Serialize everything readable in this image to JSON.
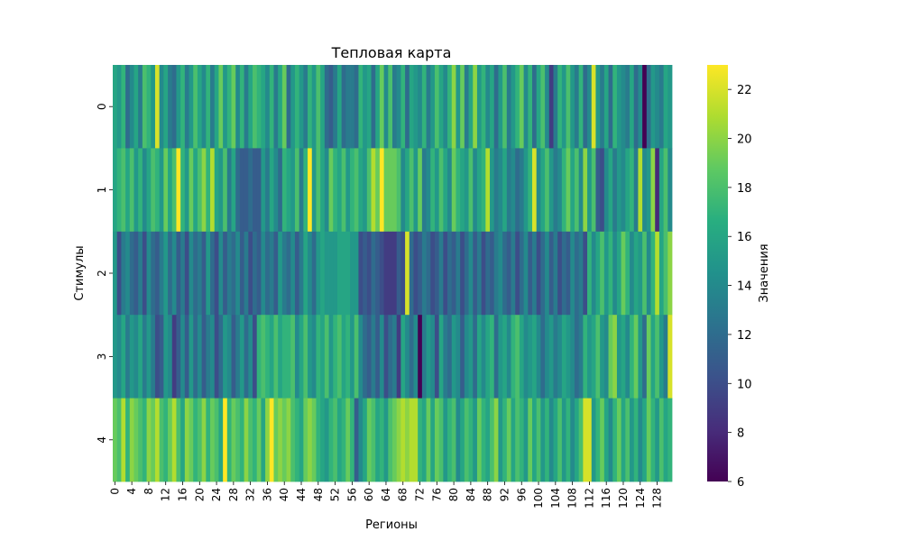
{
  "chart_data": {
    "type": "heatmap",
    "title": "Тепловая карта",
    "xlabel": "Регионы",
    "ylabel": "Стимулы",
    "colorbar_label": "Значения",
    "colormap": "viridis",
    "vmin": 6,
    "vmax": 23,
    "colorbar_ticks": [
      6,
      8,
      10,
      12,
      14,
      16,
      18,
      20,
      22
    ],
    "x_tick_labels": [
      0,
      4,
      8,
      12,
      16,
      20,
      24,
      28,
      32,
      36,
      40,
      44,
      48,
      52,
      56,
      60,
      64,
      68,
      72,
      76,
      80,
      84,
      88,
      92,
      96,
      100,
      104,
      108,
      112,
      116,
      120,
      124,
      128
    ],
    "y_tick_labels": [
      0,
      1,
      2,
      3,
      4
    ],
    "n_columns": 132,
    "rows": [
      [
        16,
        15,
        17,
        12,
        14,
        16,
        13,
        18,
        17,
        15,
        22,
        14,
        16,
        13,
        12,
        15,
        17,
        13,
        15,
        18,
        16,
        14,
        17,
        13,
        16,
        19,
        15,
        17,
        19,
        14,
        17,
        13,
        16,
        18,
        17,
        16,
        14,
        17,
        13,
        16,
        19,
        12,
        15,
        17,
        15,
        13,
        17,
        15,
        18,
        16,
        12,
        11,
        13,
        16,
        12,
        13,
        13,
        12,
        17,
        15,
        16,
        12,
        16,
        19,
        14,
        18,
        13,
        14,
        17,
        12,
        16,
        15,
        14,
        17,
        13,
        15,
        18,
        16,
        14,
        17,
        20,
        15,
        19,
        13,
        16,
        20,
        15,
        17,
        14,
        16,
        12,
        15,
        18,
        13,
        15,
        17,
        19,
        14,
        17,
        12,
        16,
        18,
        14,
        9,
        13,
        17,
        15,
        18,
        15,
        13,
        17,
        12,
        14,
        22,
        15,
        13,
        16,
        12,
        17,
        15,
        14,
        13,
        16,
        12,
        14,
        6,
        12,
        15,
        14,
        13,
        16,
        15
      ],
      [
        16,
        17,
        18,
        16,
        18,
        15,
        17,
        14,
        16,
        18,
        17,
        15,
        19,
        16,
        18,
        23,
        17,
        15,
        19,
        16,
        18,
        20,
        17,
        21,
        16,
        15,
        18,
        13,
        16,
        12,
        11,
        11,
        12,
        11,
        11,
        15,
        13,
        16,
        14,
        12,
        17,
        16,
        15,
        18,
        13,
        17,
        23,
        15,
        18,
        16,
        14,
        19,
        17,
        16,
        18,
        15,
        17,
        18,
        16,
        15,
        18,
        21,
        19,
        23,
        19,
        19,
        19,
        18,
        14,
        16,
        18,
        15,
        19,
        13,
        14,
        17,
        15,
        18,
        16,
        14,
        19,
        17,
        16,
        15,
        18,
        14,
        16,
        17,
        21,
        15,
        13,
        14,
        16,
        13,
        14,
        12,
        13,
        15,
        17,
        22,
        14,
        16,
        18,
        15,
        13,
        14,
        17,
        19,
        16,
        18,
        14,
        20,
        15,
        18,
        11,
        10,
        14,
        16,
        13,
        15,
        14,
        16,
        17,
        13,
        21,
        14,
        15,
        20,
        8,
        16,
        18,
        14
      ],
      [
        15,
        10,
        13,
        14,
        12,
        11,
        13,
        10,
        14,
        12,
        11,
        13,
        15,
        12,
        14,
        11,
        13,
        10,
        14,
        12,
        13,
        11,
        15,
        12,
        10,
        14,
        11,
        13,
        12,
        14,
        11,
        13,
        10,
        12,
        11,
        14,
        12,
        13,
        11,
        15,
        13,
        12,
        14,
        11,
        13,
        16,
        14,
        12,
        15,
        16,
        15,
        15,
        15,
        16,
        16,
        16,
        15,
        15,
        10,
        11,
        10,
        12,
        11,
        10,
        9,
        9,
        9,
        11,
        10,
        22,
        12,
        10,
        11,
        13,
        12,
        10,
        11,
        13,
        10,
        12,
        11,
        13,
        10,
        12,
        14,
        11,
        13,
        10,
        12,
        11,
        13,
        14,
        12,
        11,
        13,
        10,
        12,
        14,
        11,
        13,
        10,
        12,
        14,
        11,
        13,
        10,
        12,
        11,
        14,
        12,
        13,
        10,
        17,
        14,
        16,
        18,
        15,
        17,
        14,
        16,
        19,
        17,
        14,
        16,
        15,
        18,
        14,
        17,
        21,
        16,
        18,
        20
      ],
      [
        15,
        14,
        16,
        13,
        15,
        14,
        16,
        13,
        15,
        13,
        10,
        11,
        15,
        14,
        9,
        11,
        14,
        11,
        15,
        12,
        14,
        11,
        13,
        14,
        10,
        12,
        15,
        14,
        11,
        13,
        15,
        12,
        14,
        10,
        17,
        18,
        17,
        16,
        18,
        16,
        17,
        17,
        18,
        14,
        16,
        18,
        15,
        14,
        17,
        16,
        18,
        15,
        17,
        18,
        16,
        17,
        15,
        18,
        14,
        12,
        11,
        13,
        11,
        14,
        10,
        12,
        13,
        9,
        16,
        14,
        12,
        14,
        6,
        13,
        15,
        14,
        10,
        16,
        13,
        12,
        15,
        14,
        11,
        14,
        15,
        12,
        16,
        14,
        16,
        17,
        12,
        15,
        16,
        14,
        17,
        18,
        16,
        14,
        15,
        16,
        14,
        12,
        14,
        15,
        13,
        14,
        16,
        15,
        14,
        12,
        13,
        17,
        15,
        16,
        18,
        15,
        14,
        19,
        20,
        15,
        16,
        14,
        17,
        19,
        15,
        12,
        19,
        16,
        18,
        15,
        13,
        22
      ],
      [
        19,
        18,
        21,
        17,
        20,
        19,
        18,
        17,
        20,
        19,
        21,
        18,
        17,
        19,
        21,
        18,
        16,
        20,
        19,
        17,
        18,
        20,
        17,
        19,
        18,
        16,
        23,
        17,
        19,
        18,
        17,
        20,
        18,
        17,
        19,
        16,
        20,
        23,
        19,
        20,
        19,
        20,
        18,
        17,
        16,
        19,
        20,
        19,
        17,
        16,
        15,
        17,
        18,
        16,
        17,
        19,
        17,
        11,
        14,
        16,
        19,
        18,
        16,
        17,
        15,
        18,
        19,
        20,
        21,
        20,
        21,
        21,
        17,
        16,
        19,
        16,
        19,
        18,
        15,
        17,
        18,
        14,
        16,
        18,
        17,
        15,
        19,
        17,
        16,
        18,
        20,
        15,
        17,
        19,
        16,
        18,
        17,
        15,
        19,
        16,
        18,
        15,
        17,
        14,
        16,
        18,
        15,
        17,
        14,
        16,
        18,
        22,
        22,
        15,
        17,
        19,
        16,
        14,
        17,
        19,
        16,
        18,
        15,
        17,
        14,
        16,
        19,
        17,
        15,
        18,
        16,
        17
      ]
    ]
  }
}
